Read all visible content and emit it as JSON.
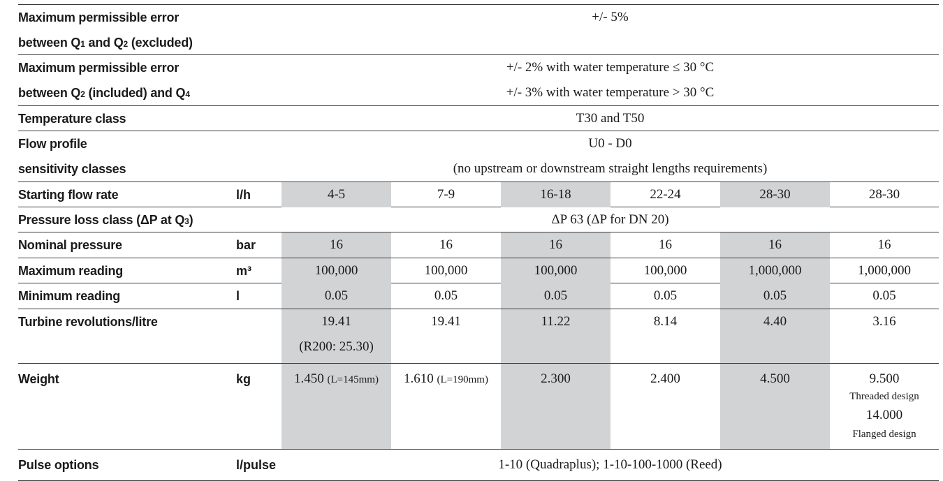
{
  "rows": {
    "mpe_q1_q2": {
      "label_line1": "Maximum permissible error",
      "label_line2_a": "between Q",
      "label_line2_sub1": "1",
      "label_line2_b": " and Q",
      "label_line2_sub2": "2",
      "label_line2_c": " (excluded)",
      "value": "+/- 5%"
    },
    "mpe_q2_q4": {
      "label_line1": "Maximum permissible error",
      "label_line2_a": "between Q",
      "label_line2_sub1": "2",
      "label_line2_b": " (included) and Q",
      "label_line2_sub2": "4",
      "value_line1": "+/- 2% with water temperature ≤ 30 °C",
      "value_line2": "+/- 3% with water temperature > 30 °C"
    },
    "temperature_class": {
      "label": "Temperature class",
      "value": "T30 and T50"
    },
    "flow_profile": {
      "label_line1": "Flow profile",
      "label_line2": "sensitivity classes",
      "value_line1": "U0 - D0",
      "value_line2": "(no upstream or downstream straight lengths requirements)"
    },
    "starting_flow": {
      "label": "Starting flow rate",
      "unit": "l/h",
      "values": [
        "4-5",
        "7-9",
        "16-18",
        "22-24",
        "28-30",
        "28-30"
      ]
    },
    "pressure_loss": {
      "label_a": "Pressure loss class  (ΔP at Q",
      "label_sub": "3",
      "label_b": ")",
      "value": "ΔP 63 (ΔP for DN 20)"
    },
    "nominal_pressure": {
      "label": "Nominal pressure",
      "unit": "bar",
      "values": [
        "16",
        "16",
        "16",
        "16",
        "16",
        "16"
      ]
    },
    "max_reading": {
      "label": "Maximum reading",
      "unit": "m³",
      "values": [
        "100,000",
        "100,000",
        "100,000",
        "100,000",
        "1,000,000",
        "1,000,000"
      ]
    },
    "min_reading": {
      "label": "Minimum reading",
      "unit": "l",
      "values": [
        "0.05",
        "0.05",
        "0.05",
        "0.05",
        "0.05",
        "0.05"
      ]
    },
    "turbine_rev": {
      "label": "Turbine revolutions/litre",
      "values": [
        "19.41",
        "19.41",
        "11.22",
        "8.14",
        "4.40",
        "3.16"
      ],
      "note_col1": "(R200: 25.30)"
    },
    "weight": {
      "label": "Weight",
      "unit": "kg",
      "col1_value": "1.450",
      "col1_note": "(L=145mm)",
      "col2_value": "1.610",
      "col2_note": "(L=190mm)",
      "col3_value": "2.300",
      "col4_value": "2.400",
      "col5_value": "4.500",
      "col6_value1": "9.500",
      "col6_note1": "Threaded design",
      "col6_value2": "14.000",
      "col6_note2": "Flanged design"
    },
    "pulse_options": {
      "label": "Pulse options",
      "unit": "l/pulse",
      "value": "1-10 (Quadraplus); 1-10-100-1000 (Reed)"
    }
  },
  "colors": {
    "shade": "#d2d3d5",
    "rule": "#3a3a3a",
    "text": "#1a1a1a"
  }
}
